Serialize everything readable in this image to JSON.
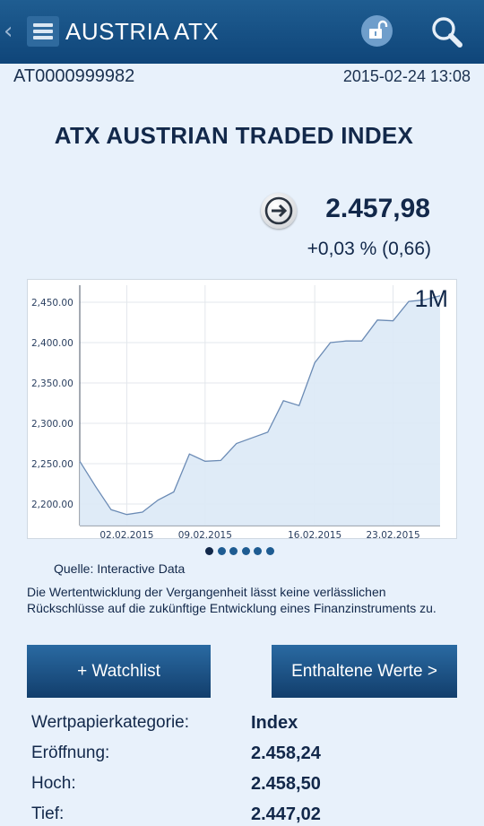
{
  "header": {
    "title": "AUSTRIA ATX",
    "back_icon": "chevron-left-icon",
    "menu_icon": "hamburger-icon",
    "lock_icon": "unlock-icon",
    "search_icon": "search-icon"
  },
  "meta": {
    "isin": "AT0000999982",
    "timestamp": "2015-02-24 13:08"
  },
  "instrument": {
    "name": "ATX AUSTRIAN TRADED INDEX",
    "price": "2.457,98",
    "change": "+0,03 %  (0,66)",
    "arrow_icon": "arrow-right-circle-icon"
  },
  "chart_data": {
    "type": "area",
    "period": "1M",
    "yticks": [
      "2,450.00",
      "2,400.00",
      "2,350.00",
      "2,300.00",
      "2,250.00",
      "2,200.00"
    ],
    "ylim": [
      2180,
      2465
    ],
    "xticks": [
      "02.02.2015",
      "09.02.2015",
      "16.02.2015",
      "23.02.2015"
    ],
    "series": [
      {
        "values": [
          2253,
          2222,
          2193,
          2187,
          2190,
          2205,
          2215,
          2262,
          2253,
          2254,
          2275,
          2282,
          2289,
          2328,
          2322,
          2375,
          2400,
          2402,
          2402,
          2428,
          2427,
          2451,
          2453,
          2458
        ]
      }
    ],
    "colors": {
      "line": "#6b8bb5",
      "fill": "#dce9f6",
      "grid": "#e3e7ec"
    }
  },
  "carousel": {
    "count": 6,
    "active_index": 0
  },
  "source": "Quelle: Interactive Data",
  "disclaimer": "Die Wertentwicklung der Vergangenheit lässt keine verlässlichen Rückschlüsse auf die zukünftige Entwicklung eines Finanzinstruments zu.",
  "buttons": {
    "watchlist": "+ Watchlist",
    "constituents": "Enthaltene Werte >"
  },
  "details": [
    {
      "label": "Wertpapierkategorie:",
      "value": "Index"
    },
    {
      "label": "Eröffnung:",
      "value": "2.458,24"
    },
    {
      "label": "Hoch:",
      "value": "2.458,50"
    },
    {
      "label": "Tief:",
      "value": "2.447,02"
    }
  ],
  "colors": {
    "header_bg": "#134b80",
    "page_bg": "#e8f1fb",
    "button_bg": "#1b5488",
    "text": "#12284a"
  }
}
